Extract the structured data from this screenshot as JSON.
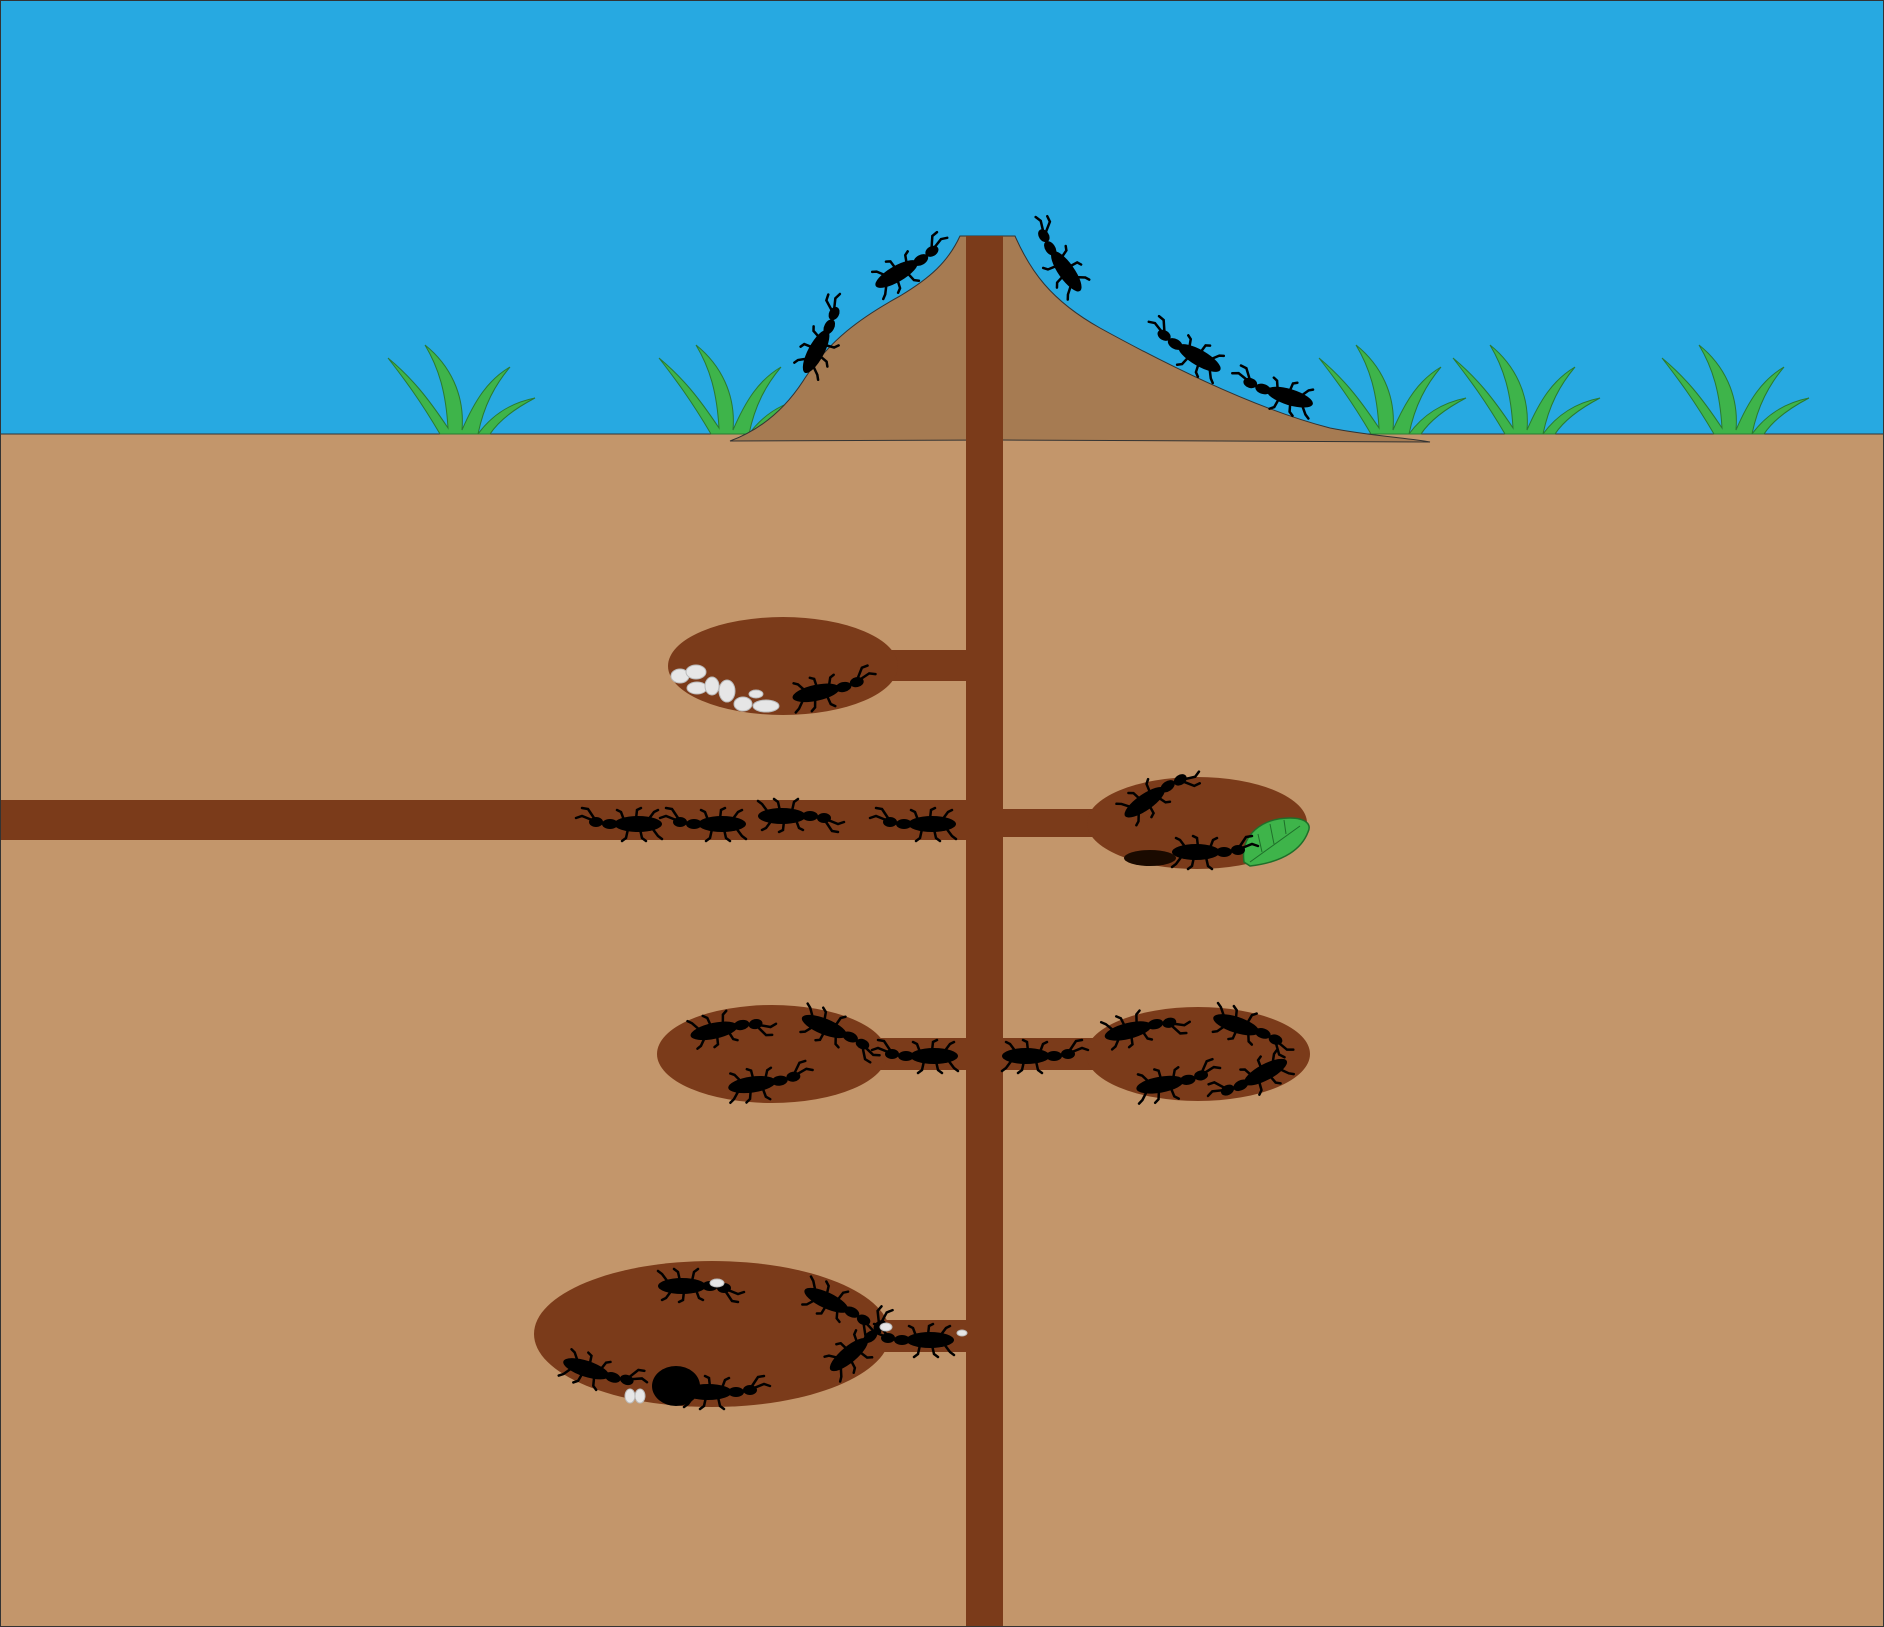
{
  "colors": {
    "sky": "#27a9e1",
    "soil": "#c3966b",
    "mound": "#a67b52",
    "tunnel": "#7b3b1a",
    "grass": "#3eb44a",
    "ant": "#000000",
    "egg": "#e6e6e6",
    "leaf": "#3eb44a"
  },
  "scene": {
    "surface": {
      "grass_tufts": 6,
      "ants_on_mound": 5
    },
    "chambers": [
      {
        "name": "nursery",
        "contents": [
          "eggs",
          "ant"
        ],
        "ant_count": 1,
        "egg_count": 8
      },
      {
        "name": "food-storage",
        "contents": [
          "leaf",
          "ants"
        ],
        "ant_count": 2
      },
      {
        "name": "resting-left",
        "contents": [
          "ants"
        ],
        "ant_count": 3
      },
      {
        "name": "resting-right",
        "contents": [
          "ants"
        ],
        "ant_count": 4
      },
      {
        "name": "queen-chamber",
        "contents": [
          "queen",
          "ants",
          "eggs"
        ],
        "ant_count": 5,
        "egg_count": 2
      }
    ],
    "side_tunnel": {
      "ant_count": 4
    },
    "connectors": {
      "ant_count": 3
    }
  }
}
